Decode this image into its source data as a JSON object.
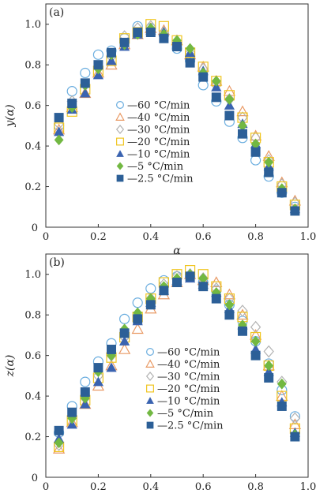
{
  "chart_data": [
    {
      "type": "scatter",
      "panel_label": "(a)",
      "xlabel": "α",
      "ylabel": "y(α)",
      "xlim": [
        0,
        1.0
      ],
      "ylim": [
        0,
        1.1
      ],
      "xticks": [
        "0",
        "0.2",
        "0.4",
        "0.6",
        "0.8",
        "1.0"
      ],
      "yticks": [
        "0.2",
        "0.4",
        "0.6",
        "0.8",
        "1.0"
      ],
      "x": [
        0.05,
        0.1,
        0.15,
        0.2,
        0.25,
        0.3,
        0.35,
        0.4,
        0.45,
        0.5,
        0.55,
        0.6,
        0.65,
        0.7,
        0.75,
        0.8,
        0.85,
        0.9,
        0.95
      ],
      "legend_position": "center-left",
      "series": [
        {
          "name": "60 °C/min",
          "values": [
            0.5,
            0.67,
            0.76,
            0.85,
            0.87,
            0.93,
            0.99,
            0.98,
            0.95,
            0.88,
            0.82,
            0.7,
            0.62,
            0.52,
            0.44,
            0.33,
            0.25,
            0.17,
            0.1
          ]
        },
        {
          "name": "40 °C/min",
          "values": [
            0.48,
            0.59,
            0.66,
            0.76,
            0.8,
            0.9,
            0.95,
            0.98,
            0.97,
            0.92,
            0.85,
            0.79,
            0.72,
            0.67,
            0.57,
            0.45,
            0.35,
            0.22,
            0.13
          ]
        },
        {
          "name": "30 °C/min",
          "values": [
            0.51,
            0.62,
            0.7,
            0.79,
            0.84,
            0.94,
            0.98,
            0.99,
            0.96,
            0.91,
            0.86,
            0.78,
            0.7,
            0.63,
            0.54,
            0.44,
            0.33,
            0.21,
            0.12
          ]
        },
        {
          "name": "20 °C/min",
          "values": [
            0.49,
            0.57,
            0.68,
            0.77,
            0.82,
            0.93,
            0.96,
            1.0,
            0.99,
            0.92,
            0.86,
            0.79,
            0.72,
            0.65,
            0.54,
            0.44,
            0.32,
            0.2,
            0.11
          ]
        },
        {
          "name": "10 °C/min",
          "values": [
            0.47,
            0.58,
            0.66,
            0.75,
            0.82,
            0.89,
            0.95,
            0.97,
            0.96,
            0.91,
            0.86,
            0.77,
            0.69,
            0.6,
            0.51,
            0.41,
            0.3,
            0.19,
            0.09
          ]
        },
        {
          "name": "5 °C/min",
          "values": [
            0.43,
            0.59,
            0.7,
            0.78,
            0.85,
            0.9,
            0.95,
            0.98,
            0.95,
            0.92,
            0.88,
            0.76,
            0.72,
            0.63,
            0.5,
            0.41,
            0.32,
            0.19,
            0.09
          ]
        },
        {
          "name": "2.5 °C/min",
          "values": [
            0.54,
            0.61,
            0.71,
            0.8,
            0.86,
            0.91,
            0.96,
            0.96,
            0.93,
            0.89,
            0.81,
            0.74,
            0.64,
            0.55,
            0.46,
            0.37,
            0.27,
            0.17,
            0.08
          ]
        }
      ]
    },
    {
      "type": "scatter",
      "panel_label": "(b)",
      "xlabel": "α",
      "ylabel": "z(α)",
      "xlim": [
        0,
        1.0
      ],
      "ylim": [
        0,
        1.1
      ],
      "xticks": [
        "0",
        "0.2",
        "0.4",
        "0.6",
        "0.8",
        "1.0"
      ],
      "yticks": [
        "0.2",
        "0.4",
        "0.6",
        "0.8",
        "1.0"
      ],
      "x": [
        0.05,
        0.1,
        0.15,
        0.2,
        0.25,
        0.3,
        0.35,
        0.4,
        0.45,
        0.5,
        0.55,
        0.6,
        0.65,
        0.7,
        0.75,
        0.8,
        0.85,
        0.9,
        0.95
      ],
      "legend_position": "bottom-center",
      "series": [
        {
          "name": "60 °C/min",
          "values": [
            0.22,
            0.35,
            0.47,
            0.57,
            0.66,
            0.78,
            0.86,
            0.93,
            0.97,
            0.99,
            0.99,
            0.96,
            0.92,
            0.85,
            0.77,
            0.67,
            0.56,
            0.43,
            0.3
          ]
        },
        {
          "name": "40 °C/min",
          "values": [
            0.14,
            0.27,
            0.36,
            0.45,
            0.55,
            0.63,
            0.73,
            0.83,
            0.9,
            0.96,
            1.0,
            0.97,
            0.96,
            0.9,
            0.8,
            0.7,
            0.55,
            0.4,
            0.26
          ]
        },
        {
          "name": "30 °C/min",
          "values": [
            0.16,
            0.3,
            0.39,
            0.5,
            0.6,
            0.69,
            0.79,
            0.88,
            0.95,
            0.99,
            1.0,
            0.98,
            0.93,
            0.88,
            0.82,
            0.74,
            0.62,
            0.47,
            0.29
          ]
        },
        {
          "name": "20 °C/min",
          "values": [
            0.15,
            0.28,
            0.38,
            0.49,
            0.59,
            0.69,
            0.79,
            0.88,
            0.96,
            1.0,
            1.02,
            1.0,
            0.94,
            0.88,
            0.79,
            0.69,
            0.55,
            0.4,
            0.24
          ]
        },
        {
          "name": "10 °C/min",
          "values": [
            0.19,
            0.26,
            0.36,
            0.47,
            0.54,
            0.67,
            0.77,
            0.86,
            0.92,
            0.97,
            0.98,
            0.95,
            0.91,
            0.83,
            0.75,
            0.63,
            0.52,
            0.37,
            0.22
          ]
        },
        {
          "name": "5 °C/min",
          "values": [
            0.17,
            0.29,
            0.39,
            0.52,
            0.6,
            0.73,
            0.81,
            0.88,
            0.94,
            0.98,
            1.0,
            0.98,
            0.91,
            0.85,
            0.75,
            0.67,
            0.55,
            0.46,
            0.21
          ]
        },
        {
          "name": "2.5 °C/min",
          "values": [
            0.23,
            0.32,
            0.42,
            0.54,
            0.63,
            0.71,
            0.78,
            0.85,
            0.92,
            0.96,
            0.99,
            0.94,
            0.88,
            0.8,
            0.72,
            0.6,
            0.49,
            0.35,
            0.2
          ]
        }
      ]
    }
  ],
  "series_styles": [
    {
      "marker": "circle-open",
      "color": "#6aaddf"
    },
    {
      "marker": "triangle-open",
      "color": "#e99a65"
    },
    {
      "marker": "diamond-open",
      "color": "#b3b3b3"
    },
    {
      "marker": "square-open",
      "color": "#f0c51f"
    },
    {
      "marker": "triangle-filled",
      "color": "#3a63b0"
    },
    {
      "marker": "diamond-filled",
      "color": "#72b842"
    },
    {
      "marker": "square-filled",
      "color": "#2c5f97"
    }
  ],
  "legend_dash": "—"
}
